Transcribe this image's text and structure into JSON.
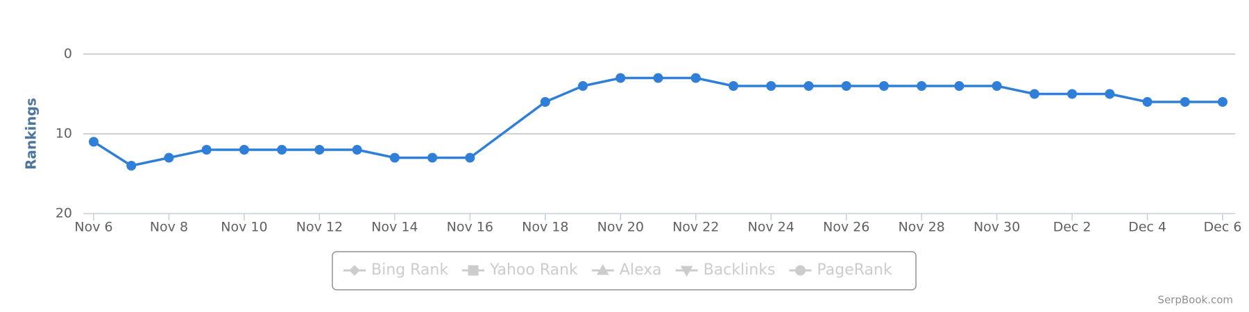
{
  "chart_data": {
    "type": "line",
    "y_label": "Rankings",
    "x": [
      "Nov 6",
      "Nov 7",
      "Nov 8",
      "Nov 9",
      "Nov 10",
      "Nov 11",
      "Nov 12",
      "Nov 13",
      "Nov 14",
      "Nov 15",
      "Nov 16",
      "Nov 18",
      "Nov 19",
      "Nov 20",
      "Nov 21",
      "Nov 22",
      "Nov 23",
      "Nov 24",
      "Nov 25",
      "Nov 26",
      "Nov 27",
      "Nov 28",
      "Nov 29",
      "Nov 30",
      "Dec 1",
      "Dec 2",
      "Dec 3",
      "Dec 4",
      "Dec 5",
      "Dec 6"
    ],
    "series": [
      {
        "color": "#2f7ed8",
        "values": [
          11,
          14,
          13,
          12,
          12,
          12,
          12,
          12,
          13,
          13,
          13,
          6,
          4,
          3,
          3,
          3,
          4,
          4,
          4,
          4,
          4,
          4,
          4,
          4,
          5,
          5,
          5,
          6,
          6,
          6
        ]
      }
    ],
    "xlim": [
      "Nov 6",
      "Dec 6"
    ],
    "xticks": [
      "Nov 6",
      "Nov 8",
      "Nov 10",
      "Nov 12",
      "Nov 14",
      "Nov 16",
      "Nov 18",
      "Nov 20",
      "Nov 22",
      "Nov 24",
      "Nov 26",
      "Nov 28",
      "Nov 30",
      "Dec 2",
      "Dec 4",
      "Dec 6"
    ],
    "ylim": [
      0,
      20
    ],
    "yticks": [
      0,
      10,
      20
    ],
    "y_reversed": true,
    "grid": true,
    "legend": [
      {
        "name": "Bing Rank",
        "marker": "diamond"
      },
      {
        "name": "Yahoo Rank",
        "marker": "square"
      },
      {
        "name": "Alexa",
        "marker": "triangle"
      },
      {
        "name": "Backlinks",
        "marker": "triangle-down"
      },
      {
        "name": "PageRank",
        "marker": "circle"
      }
    ],
    "credit": "SerpBook.com"
  }
}
